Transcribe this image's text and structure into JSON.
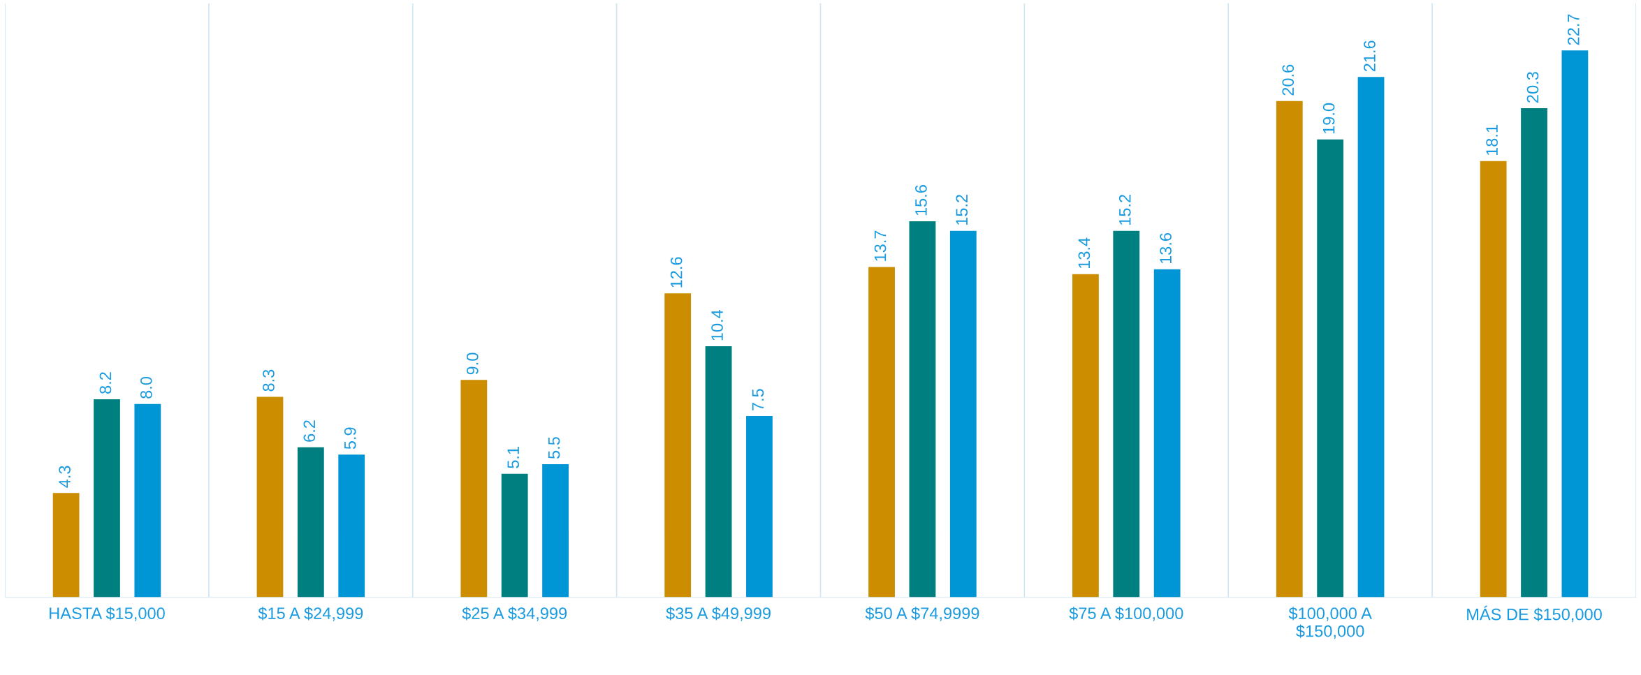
{
  "chart_data": {
    "type": "bar",
    "categories": [
      "HASTA $15,000",
      "$15 A $24,999",
      "$25 A $34,999",
      "$35 A $49,999",
      "$50 A $74,9999",
      "$75 A $100,000",
      "$100,000 A\n$150,000",
      "MÁS DE $150,000"
    ],
    "series": [
      {
        "color": "#cc8e00",
        "values": [
          4.3,
          8.3,
          9.0,
          12.6,
          13.7,
          13.4,
          20.6,
          18.1
        ],
        "value_labels": [
          "4.3",
          "8.3",
          "9.0",
          "12.6",
          "13.7",
          "13.4",
          "20.6",
          "18.1"
        ]
      },
      {
        "color": "#007f80",
        "values": [
          8.2,
          6.2,
          5.1,
          10.4,
          15.6,
          15.2,
          19.0,
          20.3
        ],
        "value_labels": [
          "8.2",
          "6.2",
          "5.1",
          "10.4",
          "15.6",
          "15.2",
          "19.0",
          "20.3"
        ]
      },
      {
        "color": "#0095d5",
        "values": [
          8.0,
          5.9,
          5.5,
          7.5,
          15.2,
          13.6,
          21.6,
          22.7
        ],
        "value_labels": [
          "8.0",
          "5.9",
          "5.5",
          "7.5",
          "15.2",
          "13.6",
          "21.6",
          "22.7"
        ]
      }
    ],
    "ylim": [
      0,
      24.7
    ],
    "grid": "x",
    "tick_labels": "x"
  }
}
